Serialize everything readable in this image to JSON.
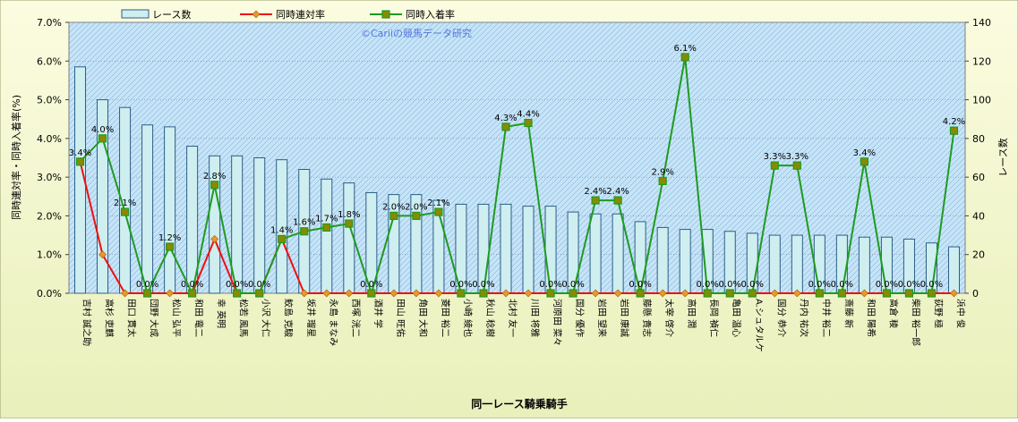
{
  "colors": {
    "frame_bg_top": "#fbfce0",
    "frame_bg_bottom": "#e9f0bb",
    "plot_bg": "#c6e4f7",
    "hatch": "#6a9fd0",
    "bar_fill": "#cfeef0",
    "bar_stroke": "#2c5d88",
    "rentai_line": "#ee1010",
    "rentai_marker": "#e59a2a",
    "nyuchaku_line": "#1f9b1f",
    "nyuchaku_marker": "#8a8a00",
    "copyright": "#5577dd"
  },
  "chart_data": {
    "type": "bar",
    "title": "",
    "copyright": "©Cariiの競馬データ研究",
    "xlabel": "同一レース騎乗騎手",
    "ylabel_left": "同時連対率・同時入着率(%)",
    "ylabel_right": "レース数",
    "ylim_left": [
      0,
      7
    ],
    "ylim_right": [
      0,
      140
    ],
    "left_ticks": [
      "0.0%",
      "1.0%",
      "2.0%",
      "3.0%",
      "4.0%",
      "5.0%",
      "6.0%",
      "7.0%"
    ],
    "right_ticks": [
      "0",
      "20",
      "40",
      "60",
      "80",
      "100",
      "120",
      "140"
    ],
    "grid": true,
    "legend_position": "top",
    "categories": [
      "吉村 誠之助",
      "高杉 吏麒",
      "田口 貫太",
      "団野 大成",
      "松山 弘平",
      "和田 竜二",
      "幸 英明",
      "松若 風馬",
      "小沢 大仁",
      "鮫島 克駿",
      "坂井 瑠星",
      "永島 まなみ",
      "西塚 洸二",
      "酒井 学",
      "田山 旺佑",
      "角田 大和",
      "菱田 裕二",
      "小崎 綾也",
      "秋山 稔樹",
      "北村 友一",
      "川田 将雅",
      "河原田 菜々",
      "国分 優作",
      "岩田 望来",
      "岩田 康誠",
      "藤懸 貴志",
      "太宰 啓介",
      "高田 潤",
      "長岡 禎仁",
      "亀田 温心",
      "A.シュタルケ",
      "国分 恭介",
      "丹内 祐次",
      "中井 裕二",
      "斎藤 新",
      "和田 陽希",
      "高倉 稜",
      "柴田 裕一郎",
      "荻野 極",
      "浜中 俊"
    ],
    "series": [
      {
        "name": "レース数",
        "axis": "right",
        "kind": "bar",
        "values": [
          117,
          100,
          96,
          87,
          86,
          76,
          71,
          71,
          70,
          69,
          64,
          59,
          57,
          52,
          51,
          51,
          48,
          46,
          46,
          46,
          45,
          45,
          42,
          41,
          41,
          37,
          34,
          33,
          33,
          32,
          31,
          30,
          30,
          30,
          30,
          29,
          29,
          28,
          26,
          24
        ]
      },
      {
        "name": "同時連対率",
        "axis": "left",
        "kind": "line",
        "values": [
          3.4,
          1.0,
          0,
          0,
          0,
          0,
          1.4,
          0,
          0,
          1.4,
          0,
          0,
          0,
          0,
          0,
          0,
          0,
          0,
          0,
          0,
          0,
          0,
          0,
          0,
          0,
          0,
          0,
          0,
          0,
          0,
          0,
          0,
          0,
          0,
          0,
          0,
          0,
          0,
          0,
          0
        ]
      },
      {
        "name": "同時入着率",
        "axis": "left",
        "kind": "line",
        "values": [
          3.4,
          4.0,
          2.1,
          0,
          1.2,
          0,
          2.8,
          0,
          0,
          1.4,
          1.6,
          1.7,
          1.8,
          0,
          2.0,
          2.0,
          2.1,
          0,
          0,
          4.3,
          4.4,
          0,
          0,
          2.4,
          2.4,
          0,
          2.9,
          6.1,
          0,
          0,
          0,
          3.3,
          3.3,
          0,
          0,
          3.4,
          0,
          0,
          0,
          4.2
        ]
      }
    ],
    "data_labels": [
      "3.4%",
      "4.0%",
      "2.1%",
      "0.0%",
      "1.2%",
      "0.0%",
      "2.8%",
      "0.0%",
      "0.0%",
      "1.4%",
      "1.6%",
      "1.7%",
      "1.8%",
      "0.0%",
      "2.0%",
      "2.0%",
      "2.1%",
      "0.0%",
      "0.0%",
      "4.3%",
      "4.4%",
      "0.0%",
      "0.0%",
      "2.4%",
      "2.4%",
      "0.0%",
      "2.9%",
      "6.1%",
      "0.0%",
      "0.0%",
      "0.0%",
      "3.3%",
      "3.3%",
      "0.0%",
      "0.0%",
      "3.4%",
      "0.0%",
      "0.0%",
      "0.0%",
      "4.2%"
    ]
  }
}
